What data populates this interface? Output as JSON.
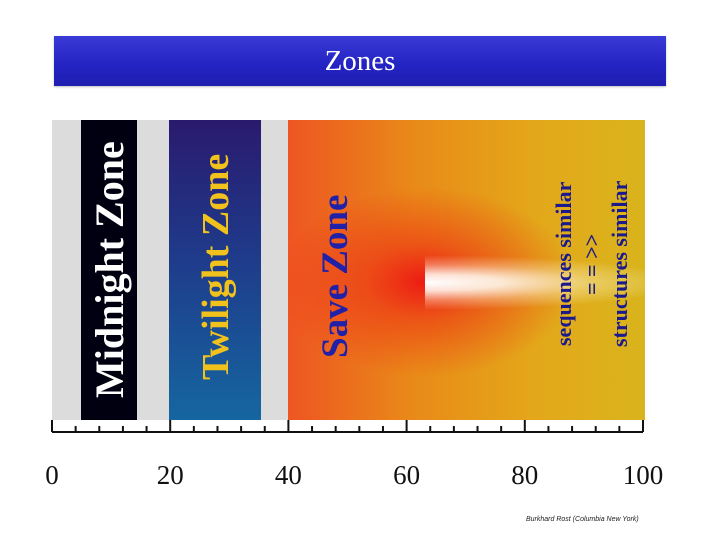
{
  "title": "Zones",
  "zones": {
    "midnight": "Midnight Zone",
    "twilight": "Twilight Zone",
    "save": "Save Zone"
  },
  "annotation": {
    "line1": "sequences similar",
    "line2": "= = >>",
    "line3": "structures similar"
  },
  "axis": {
    "min": 0,
    "max": 100,
    "major_step": 20,
    "minor_step": 4,
    "tick_labels": [
      "0",
      "20",
      "40",
      "60",
      "80",
      "100"
    ]
  },
  "credit": "Burkhard Rost (Columbia New York)",
  "colors": {
    "title_bar": "#2a2ac8",
    "midnight_band": "#000010",
    "twilight_band": "#1f3a8a",
    "save_zone_warm": "#ee3322",
    "background_gray": "#dcdcdc"
  }
}
